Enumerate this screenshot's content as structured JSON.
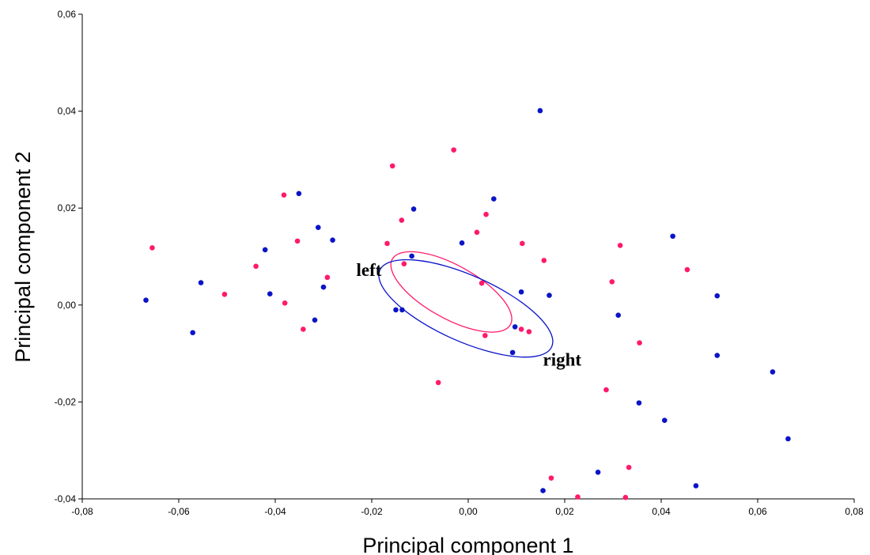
{
  "chart_data": {
    "type": "scatter",
    "xlabel": "Principal component 1",
    "ylabel": "Principal component 2",
    "xlim": [
      -0.08,
      0.08
    ],
    "ylim": [
      -0.04,
      0.06
    ],
    "xticks": [
      -0.08,
      -0.06,
      -0.04,
      -0.02,
      0.0,
      0.02,
      0.04,
      0.06,
      0.08
    ],
    "yticks": [
      -0.04,
      -0.02,
      0.0,
      0.02,
      0.04,
      0.06
    ],
    "xtick_labels": [
      "-0,08",
      "-0,06",
      "-0,04",
      "-0,02",
      "0,00",
      "0,02",
      "0,04",
      "0,06",
      "0,08"
    ],
    "ytick_labels": [
      "-0,04",
      "-0,02",
      "0,00",
      "0,02",
      "0,04",
      "0,06"
    ],
    "grid": false,
    "colors": {
      "pink": "#ff1a6c",
      "blue": "#0a14c8"
    },
    "series": [
      {
        "color": "#ff1a6c",
        "points": [
          [
            -0.0655,
            0.0118
          ],
          [
            -0.0505,
            0.0022
          ],
          [
            -0.044,
            0.008
          ],
          [
            -0.0382,
            0.0227
          ],
          [
            -0.038,
            0.0004
          ],
          [
            -0.0354,
            0.0132
          ],
          [
            -0.0342,
            -0.005
          ],
          [
            -0.0292,
            0.0057
          ],
          [
            -0.0168,
            0.0127
          ],
          [
            -0.0157,
            0.0287
          ],
          [
            -0.0138,
            0.0175
          ],
          [
            -0.0133,
            0.0085
          ],
          [
            -0.0062,
            -0.016
          ],
          [
            -0.003,
            0.032
          ],
          [
            0.0018,
            0.015
          ],
          [
            0.0028,
            0.0045
          ],
          [
            0.0037,
            0.0187
          ],
          [
            0.0035,
            -0.0063
          ],
          [
            0.011,
            -0.005
          ],
          [
            0.0126,
            -0.0055
          ],
          [
            0.0112,
            0.0127
          ],
          [
            0.0157,
            0.0092
          ],
          [
            0.0172,
            -0.0357
          ],
          [
            0.0227,
            -0.0396
          ],
          [
            0.0286,
            -0.0175
          ],
          [
            0.0298,
            0.0048
          ],
          [
            0.0315,
            0.0123
          ],
          [
            0.0326,
            -0.0397
          ],
          [
            0.0333,
            -0.0335
          ],
          [
            0.0355,
            -0.0078
          ],
          [
            0.0454,
            0.0073
          ]
        ]
      },
      {
        "color": "#0a14c8",
        "points": [
          [
            -0.0668,
            0.001
          ],
          [
            -0.0571,
            -0.0057
          ],
          [
            -0.0554,
            0.0046
          ],
          [
            -0.0421,
            0.0114
          ],
          [
            -0.0411,
            0.0023
          ],
          [
            -0.0351,
            0.023
          ],
          [
            -0.0318,
            -0.0031
          ],
          [
            -0.0311,
            0.016
          ],
          [
            -0.03,
            0.0037
          ],
          [
            -0.0281,
            0.0134
          ],
          [
            -0.015,
            -0.001
          ],
          [
            -0.0137,
            -0.001
          ],
          [
            -0.0117,
            0.0101
          ],
          [
            -0.0113,
            0.0198
          ],
          [
            -0.0013,
            0.0128
          ],
          [
            0.0053,
            0.0219
          ],
          [
            0.0092,
            -0.0098
          ],
          [
            0.0097,
            -0.0045
          ],
          [
            0.011,
            0.0027
          ],
          [
            0.0149,
            0.0401
          ],
          [
            0.0155,
            -0.0383
          ],
          [
            0.0168,
            0.002
          ],
          [
            0.0269,
            -0.0345
          ],
          [
            0.0311,
            -0.0021
          ],
          [
            0.0354,
            -0.0202
          ],
          [
            0.0407,
            -0.0238
          ],
          [
            0.0424,
            0.0142
          ],
          [
            0.0472,
            -0.0373
          ],
          [
            0.0516,
            0.0019
          ],
          [
            0.0516,
            -0.0104
          ],
          [
            0.0631,
            -0.0138
          ],
          [
            0.0663,
            -0.0276
          ]
        ]
      }
    ],
    "ellipses": [
      {
        "label": "left",
        "color": "#ff1a6c",
        "cx": -0.0035,
        "cy": 0.0027,
        "rx": 0.014,
        "ry": 0.0055,
        "angle_deg": 29
      },
      {
        "label": "right",
        "color": "#0a14c8",
        "cx": -0.0005,
        "cy": -0.0007,
        "rx": 0.0195,
        "ry": 0.0068,
        "angle_deg": 24
      }
    ],
    "annotations": [
      {
        "text": "left",
        "x": -0.0232,
        "y": 0.006
      },
      {
        "text": "right",
        "x": 0.0155,
        "y": -0.0125
      }
    ]
  }
}
